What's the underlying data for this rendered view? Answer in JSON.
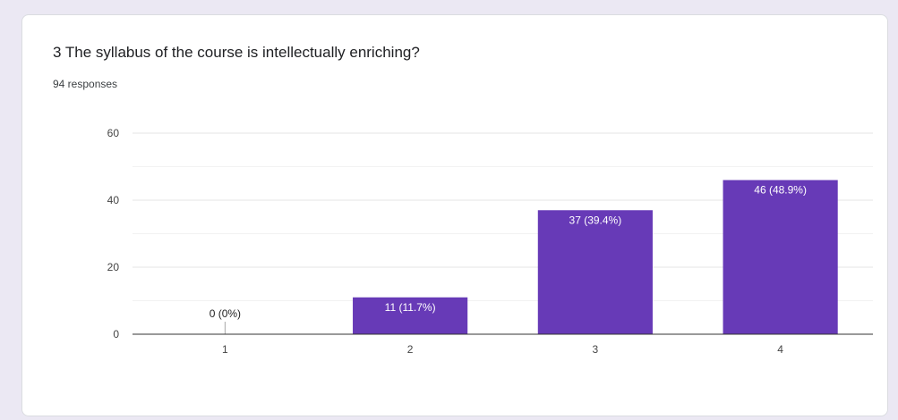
{
  "question": {
    "title": "3 The syllabus of the course is intellectually enriching?",
    "responses": "94 responses"
  },
  "colors": {
    "bar": "#673ab7",
    "bar_label_inside": "#ffffff",
    "bar_label_outside": "#222222",
    "gridline": "#e6e6e6",
    "axis": "#333333"
  },
  "chart_data": {
    "type": "bar",
    "categories": [
      "1",
      "2",
      "3",
      "4"
    ],
    "values": [
      0,
      11,
      37,
      46
    ],
    "data_labels": [
      "0 (0%)",
      "11 (11.7%)",
      "37 (39.4%)",
      "46 (48.9%)"
    ],
    "yticks": [
      0,
      20,
      40,
      60
    ],
    "ylim": [
      0,
      60
    ],
    "title": "",
    "xlabel": "",
    "ylabel": "",
    "grid": true,
    "legend": "none"
  }
}
